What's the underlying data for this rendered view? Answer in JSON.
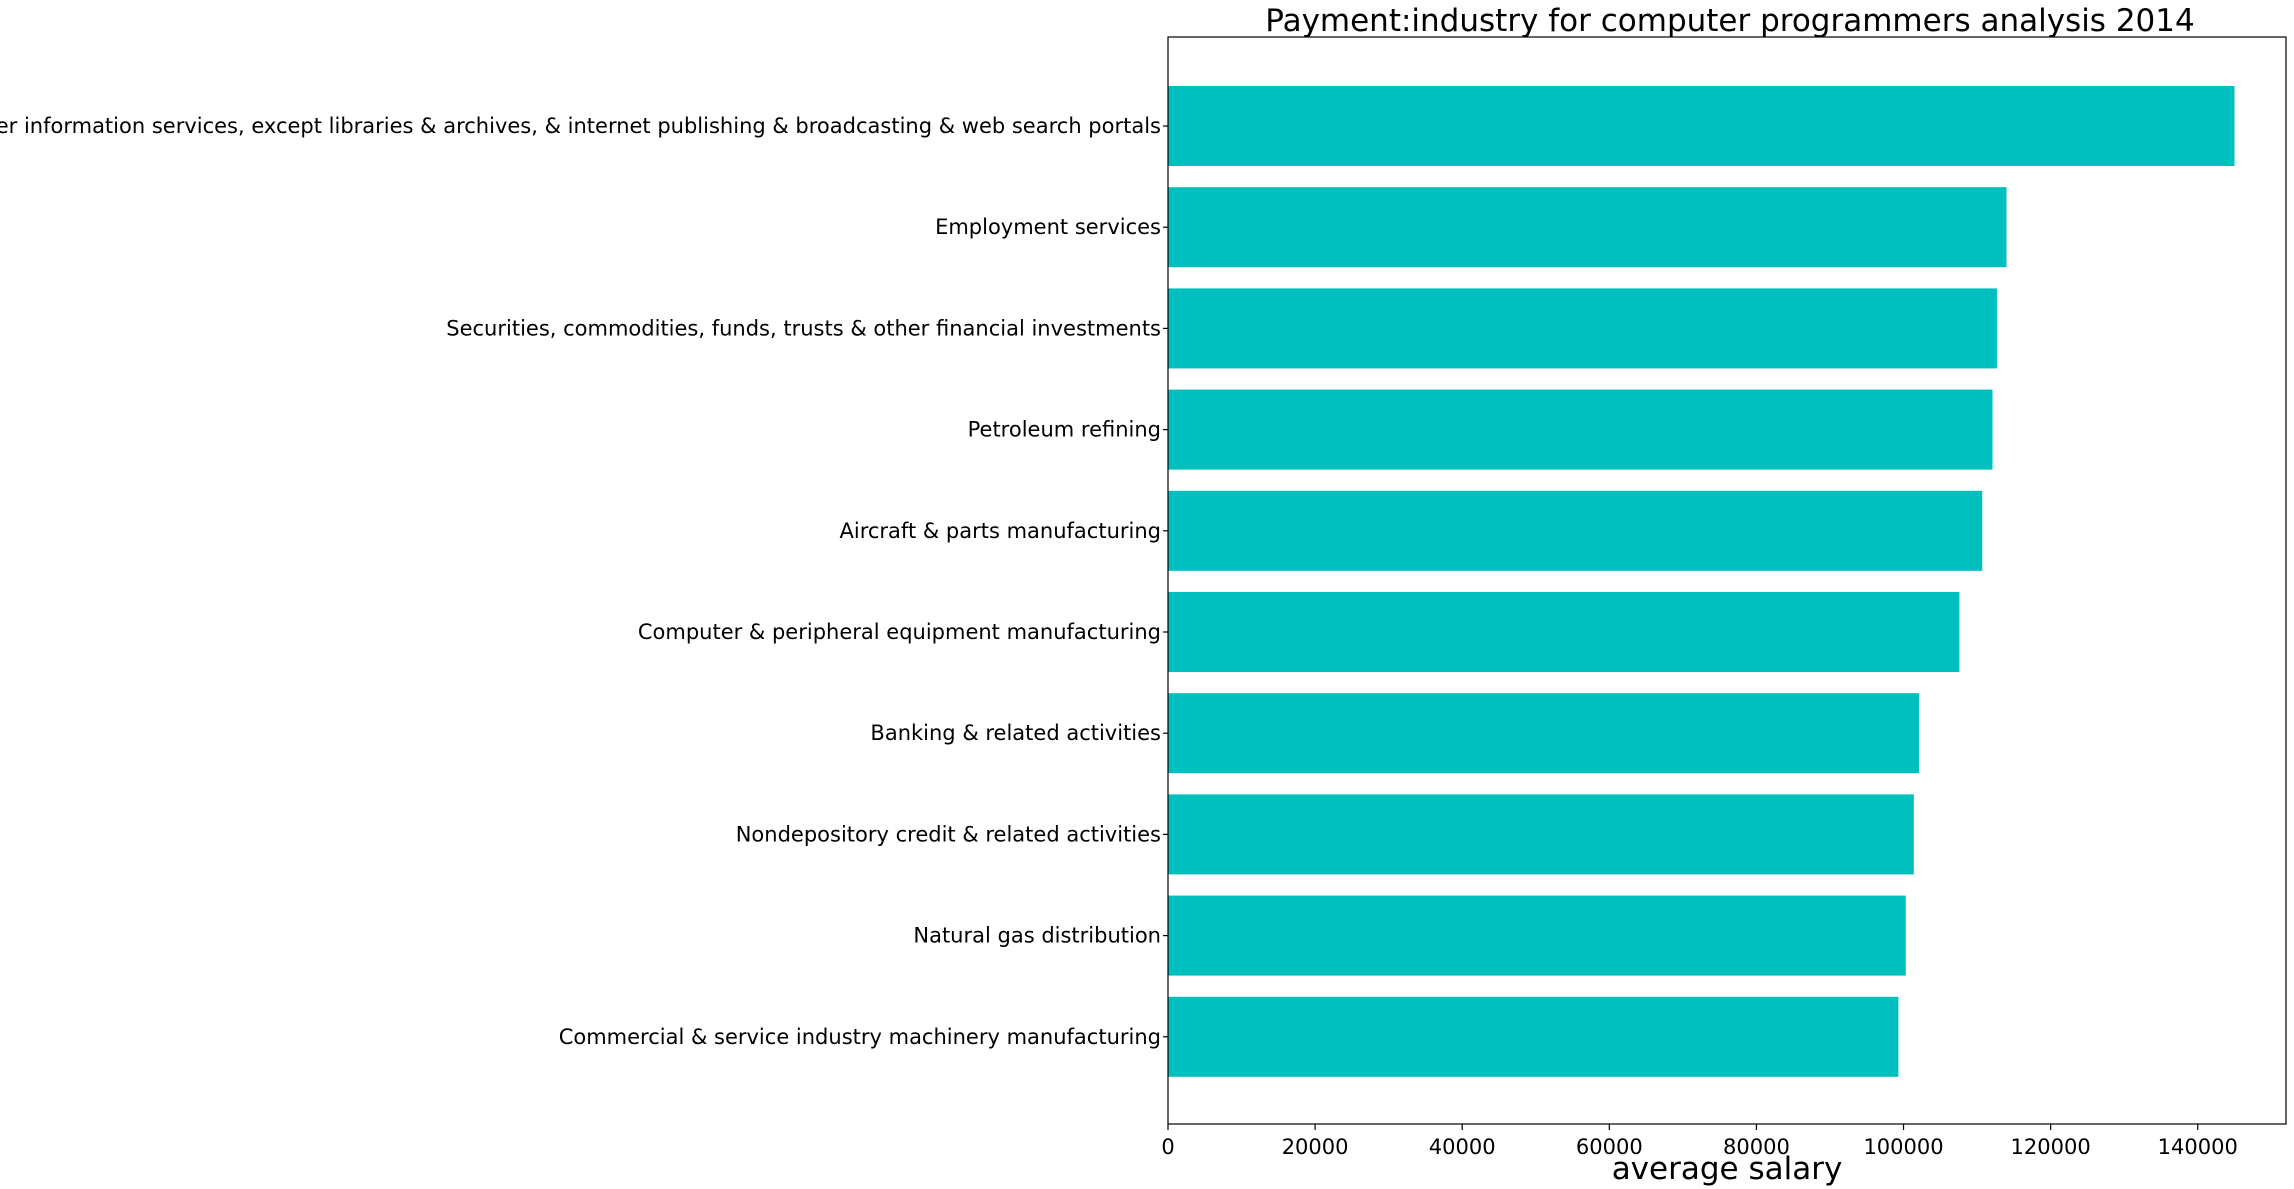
{
  "chart_data": {
    "type": "bar",
    "orientation": "horizontal",
    "title": "Payment:industry for computer programmers analysis 2014",
    "xlabel": "average salary",
    "ylabel": "",
    "xlim": [
      0,
      152000
    ],
    "xticks": [
      0,
      20000,
      40000,
      60000,
      80000,
      100000,
      120000,
      140000
    ],
    "grid": false,
    "bar_color": "#00bfbf",
    "categories": [
      "Other information services, except libraries & archives, & internet publishing & broadcasting & web search portals",
      "Employment services",
      "Securities, commodities, funds, trusts & other financial investments",
      "Petroleum refining",
      "Aircraft & parts manufacturing",
      "Computer & peripheral equipment manufacturing",
      "Banking & related activities",
      "Nondepository credit & related activities",
      "Natural gas distribution",
      "Commercial & service industry machinery manufacturing"
    ],
    "values": [
      145000,
      114000,
      112700,
      112100,
      110700,
      107600,
      102100,
      101400,
      100300,
      99300
    ]
  }
}
